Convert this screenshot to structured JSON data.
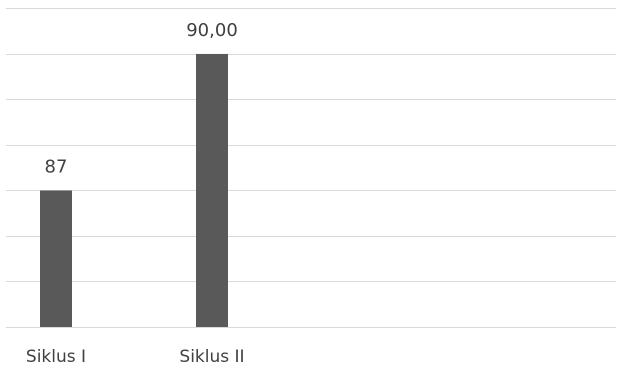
{
  "chart_data": {
    "type": "bar",
    "categories": [
      "Siklus I",
      "Siklus II"
    ],
    "values": [
      87,
      90
    ],
    "data_labels": [
      "87",
      "90,00"
    ],
    "ylim": [
      84,
      90.9
    ],
    "gridline_values": [
      84,
      85,
      86,
      87,
      88,
      89,
      90,
      91
    ],
    "grid": true,
    "legend": "none",
    "title": "",
    "xlabel": "",
    "ylabel": "",
    "colors": {
      "bar": "#595959",
      "grid": "#d9d9d9",
      "axis": "#d9d9d9",
      "text": "#404040"
    }
  }
}
